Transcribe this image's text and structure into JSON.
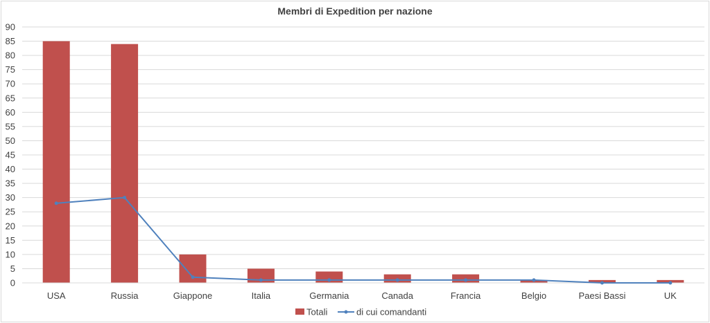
{
  "chart_data": {
    "type": "bar",
    "title": "Membri di Expedition per nazione",
    "categories": [
      "USA",
      "Russia",
      "Giappone",
      "Italia",
      "Germania",
      "Canada",
      "Francia",
      "Belgio",
      "Paesi Bassi",
      "UK"
    ],
    "series": [
      {
        "name": "Totali",
        "type": "bar",
        "color": "#c0504d",
        "values": [
          85,
          84,
          10,
          5,
          4,
          3,
          3,
          1,
          1,
          1
        ]
      },
      {
        "name": "di cui comandanti",
        "type": "line",
        "color": "#4f81bd",
        "values": [
          28,
          30,
          2,
          1,
          1,
          1,
          1,
          1,
          0,
          0
        ]
      }
    ],
    "ylim": [
      0,
      90
    ],
    "yticks": [
      0,
      5,
      10,
      15,
      20,
      25,
      30,
      35,
      40,
      45,
      50,
      55,
      60,
      65,
      70,
      75,
      80,
      85,
      90
    ],
    "grid": true,
    "legend_position": "bottom"
  }
}
